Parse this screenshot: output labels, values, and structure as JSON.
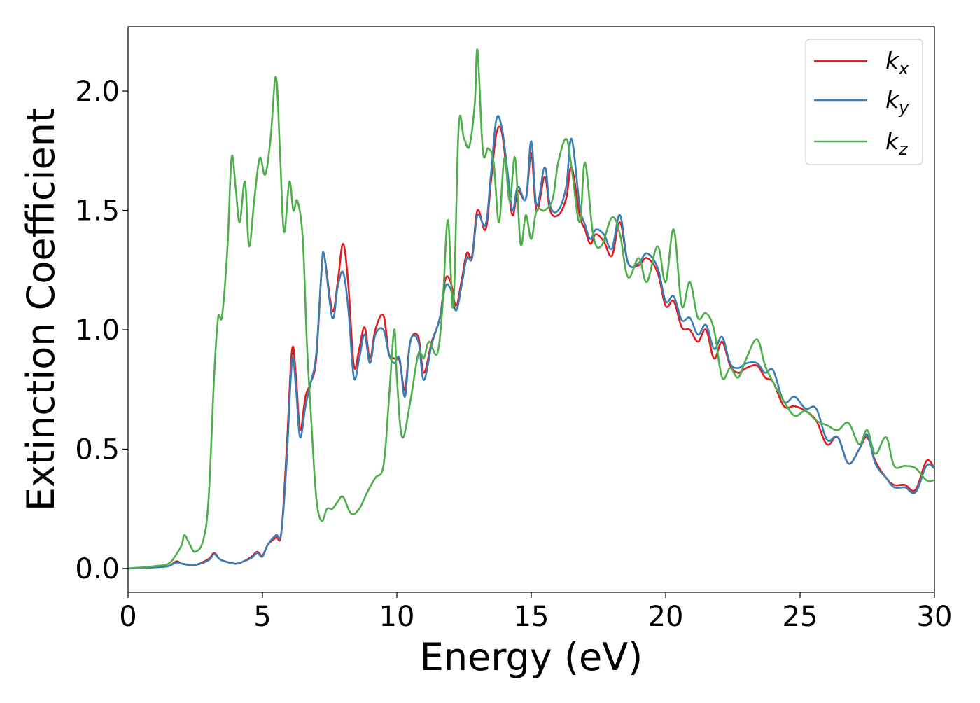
{
  "chart_data": {
    "type": "line",
    "title": "",
    "xlabel": "Energy (eV)",
    "ylabel": "Extinction Coefficient",
    "xlim": [
      0,
      30
    ],
    "ylim": [
      -0.1,
      2.27
    ],
    "xticks": [
      0,
      5,
      10,
      15,
      20,
      25,
      30
    ],
    "xtick_labels": [
      "0",
      "5",
      "10",
      "15",
      "20",
      "25",
      "30"
    ],
    "yticks": [
      0.0,
      0.5,
      1.0,
      1.5,
      2.0
    ],
    "ytick_labels": [
      "0.0",
      "0.5",
      "1.0",
      "1.5",
      "2.0"
    ],
    "grid": false,
    "legend_position": "top-right",
    "series": [
      {
        "name": "k_x",
        "legend_base": "k",
        "legend_sub": "x",
        "color": "#e41a1c",
        "x": [
          0,
          1.0,
          1.5,
          1.8,
          2.0,
          2.5,
          3.0,
          3.2,
          3.4,
          3.6,
          4.0,
          4.3,
          4.6,
          4.8,
          5.0,
          5.2,
          5.5,
          5.7,
          5.9,
          6.1,
          6.25,
          6.4,
          6.6,
          6.8,
          7.0,
          7.2,
          7.3,
          7.6,
          7.8,
          8.0,
          8.2,
          8.4,
          8.6,
          8.8,
          9.0,
          9.2,
          9.5,
          9.7,
          9.9,
          10.1,
          10.3,
          10.5,
          10.8,
          11.0,
          11.3,
          11.6,
          11.8,
          12.0,
          12.2,
          12.4,
          12.6,
          12.8,
          13.0,
          13.3,
          13.5,
          13.7,
          13.9,
          14.1,
          14.3,
          14.5,
          14.8,
          15.0,
          15.2,
          15.5,
          15.7,
          16.0,
          16.3,
          16.5,
          16.8,
          17.0,
          17.2,
          17.4,
          17.7,
          18.0,
          18.3,
          18.6,
          19.0,
          19.3,
          19.7,
          20.0,
          20.3,
          20.6,
          20.9,
          21.2,
          21.5,
          21.8,
          22.1,
          22.4,
          22.7,
          23.0,
          23.4,
          23.7,
          24.0,
          24.4,
          24.8,
          25.2,
          25.6,
          26.0,
          26.4,
          26.8,
          27.2,
          27.5,
          27.8,
          28.2,
          28.5,
          28.9,
          29.3,
          29.7,
          30.0
        ],
        "y": [
          0.0,
          0.005,
          0.01,
          0.03,
          0.02,
          0.015,
          0.04,
          0.065,
          0.04,
          0.03,
          0.02,
          0.03,
          0.05,
          0.07,
          0.055,
          0.1,
          0.13,
          0.15,
          0.5,
          0.915,
          0.8,
          0.58,
          0.72,
          0.78,
          0.88,
          1.25,
          1.31,
          1.08,
          1.2,
          1.36,
          1.18,
          0.85,
          0.92,
          1.01,
          0.88,
          1.0,
          1.06,
          0.9,
          0.88,
          0.87,
          0.75,
          0.95,
          0.97,
          0.82,
          0.95,
          1.05,
          1.21,
          1.2,
          1.1,
          1.2,
          1.32,
          1.31,
          1.5,
          1.42,
          1.62,
          1.82,
          1.83,
          1.65,
          1.48,
          1.58,
          1.55,
          1.74,
          1.5,
          1.64,
          1.5,
          1.48,
          1.55,
          1.68,
          1.48,
          1.42,
          1.36,
          1.4,
          1.37,
          1.31,
          1.45,
          1.28,
          1.27,
          1.3,
          1.24,
          1.1,
          1.12,
          1.01,
          1.0,
          0.95,
          1.0,
          0.88,
          0.95,
          0.85,
          0.82,
          0.84,
          0.85,
          0.8,
          0.78,
          0.68,
          0.68,
          0.66,
          0.62,
          0.52,
          0.55,
          0.44,
          0.5,
          0.55,
          0.45,
          0.38,
          0.35,
          0.35,
          0.33,
          0.45,
          0.42
        ]
      },
      {
        "name": "k_y",
        "legend_base": "k",
        "legend_sub": "y",
        "color": "#377eb8",
        "x": [
          0,
          1.0,
          1.5,
          1.8,
          2.0,
          2.5,
          3.0,
          3.2,
          3.4,
          3.6,
          4.0,
          4.3,
          4.6,
          4.8,
          5.0,
          5.2,
          5.5,
          5.7,
          5.9,
          6.1,
          6.25,
          6.4,
          6.6,
          6.8,
          7.0,
          7.2,
          7.3,
          7.6,
          7.8,
          8.0,
          8.2,
          8.4,
          8.6,
          8.8,
          9.0,
          9.2,
          9.5,
          9.7,
          9.9,
          10.1,
          10.3,
          10.5,
          10.8,
          11.0,
          11.3,
          11.6,
          11.8,
          12.0,
          12.2,
          12.4,
          12.6,
          12.8,
          13.0,
          13.3,
          13.5,
          13.7,
          13.9,
          14.1,
          14.3,
          14.5,
          14.8,
          15.0,
          15.2,
          15.5,
          15.7,
          16.0,
          16.3,
          16.5,
          16.8,
          17.0,
          17.2,
          17.4,
          17.7,
          18.0,
          18.3,
          18.6,
          19.0,
          19.3,
          19.7,
          20.0,
          20.3,
          20.6,
          20.9,
          21.2,
          21.5,
          21.8,
          22.1,
          22.4,
          22.7,
          23.0,
          23.4,
          23.7,
          24.0,
          24.4,
          24.8,
          25.2,
          25.6,
          26.0,
          26.4,
          26.8,
          27.2,
          27.5,
          27.8,
          28.2,
          28.5,
          28.9,
          29.3,
          29.7,
          30.0
        ],
        "y": [
          0.0,
          0.005,
          0.01,
          0.025,
          0.02,
          0.015,
          0.035,
          0.06,
          0.04,
          0.03,
          0.02,
          0.03,
          0.045,
          0.065,
          0.05,
          0.1,
          0.14,
          0.15,
          0.45,
          0.87,
          0.75,
          0.55,
          0.68,
          0.78,
          0.9,
          1.25,
          1.31,
          1.05,
          1.18,
          1.24,
          1.08,
          0.8,
          0.88,
          0.98,
          0.86,
          0.98,
          1.0,
          0.9,
          0.86,
          0.88,
          0.72,
          0.95,
          0.95,
          0.79,
          0.94,
          1.05,
          1.18,
          1.17,
          1.08,
          1.18,
          1.3,
          1.3,
          1.48,
          1.44,
          1.65,
          1.88,
          1.85,
          1.68,
          1.5,
          1.6,
          1.55,
          1.79,
          1.52,
          1.68,
          1.52,
          1.5,
          1.6,
          1.8,
          1.52,
          1.44,
          1.38,
          1.42,
          1.4,
          1.34,
          1.48,
          1.28,
          1.28,
          1.32,
          1.26,
          1.12,
          1.14,
          1.04,
          1.05,
          0.98,
          1.02,
          0.92,
          0.97,
          0.86,
          0.84,
          0.86,
          0.86,
          0.82,
          0.83,
          0.7,
          0.72,
          0.67,
          0.67,
          0.54,
          0.55,
          0.44,
          0.5,
          0.56,
          0.44,
          0.38,
          0.34,
          0.34,
          0.32,
          0.43,
          0.42
        ]
      },
      {
        "name": "k_z",
        "legend_base": "k",
        "legend_sub": "z",
        "color": "#4daf4a",
        "x": [
          0,
          1.0,
          1.5,
          1.8,
          2.0,
          2.1,
          2.3,
          2.5,
          2.8,
          3.0,
          3.2,
          3.35,
          3.5,
          3.7,
          3.85,
          4.0,
          4.15,
          4.35,
          4.5,
          4.7,
          4.9,
          5.1,
          5.3,
          5.5,
          5.65,
          5.8,
          6.0,
          6.15,
          6.3,
          6.5,
          6.65,
          6.8,
          7.0,
          7.2,
          7.4,
          7.6,
          7.8,
          8.0,
          8.3,
          8.6,
          8.9,
          9.2,
          9.5,
          9.7,
          9.9,
          10.0,
          10.2,
          10.5,
          10.8,
          11.0,
          11.2,
          11.5,
          11.7,
          11.9,
          12.1,
          12.3,
          12.5,
          12.7,
          12.9,
          13.0,
          13.2,
          13.4,
          13.6,
          13.8,
          14.0,
          14.2,
          14.4,
          14.6,
          14.8,
          15.0,
          15.2,
          15.5,
          15.8,
          16.0,
          16.3,
          16.5,
          16.8,
          17.0,
          17.3,
          17.6,
          18.0,
          18.3,
          18.6,
          19.0,
          19.3,
          19.7,
          20.0,
          20.3,
          20.6,
          20.9,
          21.2,
          21.5,
          21.8,
          22.1,
          22.4,
          22.7,
          23.0,
          23.4,
          23.7,
          24.0,
          24.4,
          24.8,
          25.2,
          25.6,
          26.0,
          26.4,
          26.8,
          27.2,
          27.5,
          27.8,
          28.2,
          28.5,
          28.9,
          29.3,
          29.7,
          30.0
        ],
        "y": [
          0.0,
          0.01,
          0.02,
          0.06,
          0.1,
          0.14,
          0.1,
          0.07,
          0.12,
          0.3,
          0.8,
          1.05,
          1.06,
          1.35,
          1.72,
          1.6,
          1.45,
          1.62,
          1.35,
          1.55,
          1.72,
          1.65,
          1.8,
          2.06,
          1.75,
          1.41,
          1.62,
          1.5,
          1.54,
          1.38,
          0.95,
          0.65,
          0.3,
          0.2,
          0.25,
          0.25,
          0.28,
          0.3,
          0.23,
          0.25,
          0.32,
          0.38,
          0.43,
          0.7,
          1.0,
          0.8,
          0.55,
          0.7,
          0.9,
          0.88,
          0.95,
          0.9,
          1.1,
          1.46,
          1.1,
          1.85,
          1.8,
          1.77,
          1.95,
          2.17,
          1.75,
          1.76,
          1.7,
          1.45,
          1.72,
          1.54,
          1.72,
          1.36,
          1.48,
          1.38,
          1.5,
          1.5,
          1.55,
          1.7,
          1.8,
          1.68,
          1.45,
          1.7,
          1.4,
          1.35,
          1.47,
          1.4,
          1.22,
          1.3,
          1.2,
          1.35,
          1.2,
          1.42,
          1.1,
          1.2,
          1.05,
          1.07,
          1.0,
          0.8,
          0.84,
          0.8,
          0.88,
          0.96,
          0.85,
          0.78,
          0.7,
          0.64,
          0.66,
          0.62,
          0.6,
          0.58,
          0.61,
          0.52,
          0.58,
          0.48,
          0.55,
          0.43,
          0.43,
          0.42,
          0.37,
          0.37
        ]
      }
    ]
  }
}
